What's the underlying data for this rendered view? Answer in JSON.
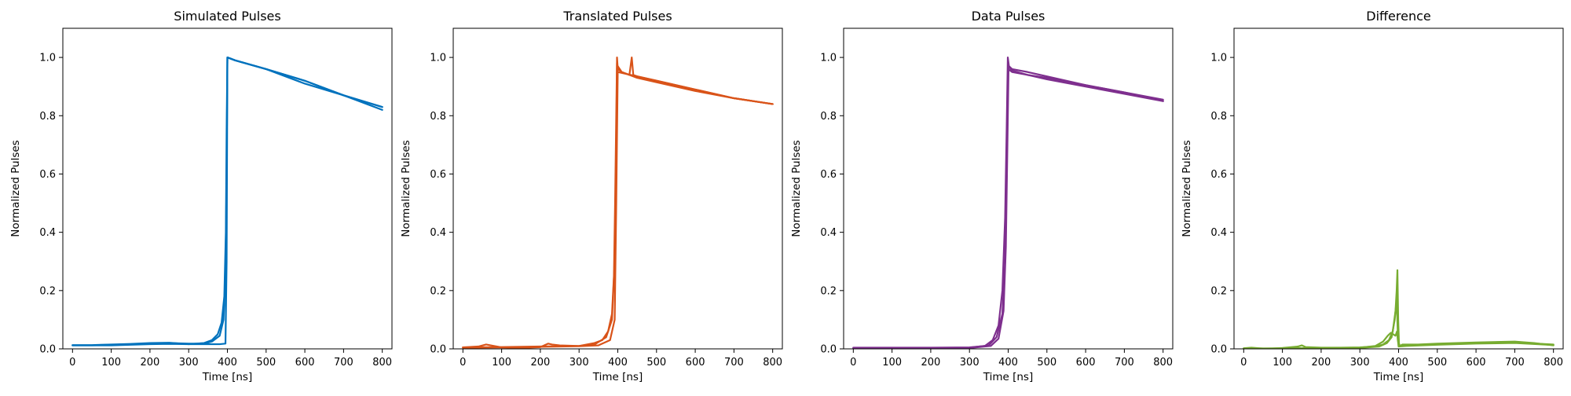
{
  "chart_data": [
    {
      "type": "line",
      "title": "Simulated Pulses",
      "xlabel": "Time [ns]",
      "ylabel": "Normalized Pulses",
      "xlim": [
        -25,
        825
      ],
      "ylim": [
        0,
        1.1
      ],
      "xticks": [
        0,
        100,
        200,
        300,
        400,
        500,
        600,
        700,
        800
      ],
      "yticks": [
        0.0,
        0.2,
        0.4,
        0.6,
        0.8,
        1.0
      ],
      "color": "#0072bd",
      "grid": false,
      "series": [
        {
          "x": [
            0,
            50,
            100,
            150,
            200,
            250,
            300,
            340,
            360,
            375,
            385,
            392,
            396,
            398,
            400,
            420,
            500,
            600,
            700,
            800
          ],
          "y": [
            0.013,
            0.013,
            0.015,
            0.017,
            0.02,
            0.021,
            0.016,
            0.02,
            0.03,
            0.05,
            0.09,
            0.18,
            0.4,
            0.75,
            1.0,
            0.99,
            0.96,
            0.91,
            0.87,
            0.82
          ]
        },
        {
          "x": [
            0,
            50,
            100,
            150,
            200,
            250,
            300,
            340,
            360,
            380,
            390,
            395,
            398,
            400,
            420,
            500,
            600,
            700,
            800
          ],
          "y": [
            0.012,
            0.012,
            0.014,
            0.016,
            0.018,
            0.02,
            0.018,
            0.018,
            0.025,
            0.045,
            0.1,
            0.25,
            0.6,
            1.0,
            0.99,
            0.96,
            0.92,
            0.87,
            0.83
          ]
        },
        {
          "x": [
            0,
            50,
            100,
            150,
            200,
            250,
            300,
            350,
            380,
            395,
            398,
            400,
            420,
            500,
            600,
            700,
            800
          ],
          "y": [
            0.012,
            0.012,
            0.012,
            0.014,
            0.016,
            0.017,
            0.016,
            0.016,
            0.016,
            0.018,
            0.3,
            1.0,
            0.99,
            0.96,
            0.92,
            0.87,
            0.83
          ]
        }
      ]
    },
    {
      "type": "line",
      "title": "Translated Pulses",
      "xlabel": "Time [ns]",
      "ylabel": "Normalized Pulses",
      "xlim": [
        -25,
        825
      ],
      "ylim": [
        0,
        1.1
      ],
      "xticks": [
        0,
        100,
        200,
        300,
        400,
        500,
        600,
        700,
        800
      ],
      "yticks": [
        0.0,
        0.2,
        0.4,
        0.6,
        0.8,
        1.0
      ],
      "color": "#d95319",
      "grid": false,
      "series": [
        {
          "x": [
            0,
            40,
            60,
            80,
            100,
            150,
            200,
            220,
            230,
            250,
            300,
            320,
            340,
            360,
            375,
            385,
            390,
            393,
            396,
            398,
            400,
            410,
            430,
            436,
            440,
            450,
            500,
            600,
            700,
            800
          ],
          "y": [
            0.005,
            0.008,
            0.015,
            0.01,
            0.005,
            0.003,
            0.006,
            0.018,
            0.015,
            0.012,
            0.01,
            0.015,
            0.02,
            0.03,
            0.06,
            0.12,
            0.25,
            0.5,
            0.8,
            1.0,
            0.96,
            0.95,
            0.94,
            1.0,
            0.94,
            0.935,
            0.92,
            0.89,
            0.86,
            0.84
          ]
        },
        {
          "x": [
            0,
            100,
            200,
            300,
            340,
            370,
            385,
            392,
            396,
            398,
            400,
            450,
            500,
            600,
            700,
            800
          ],
          "y": [
            0.005,
            0.006,
            0.008,
            0.01,
            0.015,
            0.04,
            0.1,
            0.3,
            0.7,
            0.98,
            0.95,
            0.935,
            0.92,
            0.89,
            0.86,
            0.84
          ]
        },
        {
          "x": [
            0,
            100,
            200,
            300,
            350,
            380,
            392,
            396,
            400,
            410,
            450,
            500,
            600,
            700,
            800
          ],
          "y": [
            0.004,
            0.005,
            0.007,
            0.009,
            0.012,
            0.03,
            0.1,
            0.5,
            0.97,
            0.95,
            0.93,
            0.915,
            0.885,
            0.86,
            0.84
          ]
        }
      ]
    },
    {
      "type": "line",
      "title": "Data Pulses",
      "xlabel": "Time [ns]",
      "ylabel": "Normalized Pulses",
      "xlim": [
        -25,
        825
      ],
      "ylim": [
        0,
        1.1
      ],
      "xticks": [
        0,
        100,
        200,
        300,
        400,
        500,
        600,
        700,
        800
      ],
      "yticks": [
        0.0,
        0.2,
        0.4,
        0.6,
        0.8,
        1.0
      ],
      "color": "#7e2f8e",
      "grid": false,
      "series": [
        {
          "x": [
            0,
            100,
            200,
            300,
            340,
            360,
            375,
            385,
            392,
            396,
            399,
            402,
            410,
            450,
            500,
            600,
            700,
            800
          ],
          "y": [
            0.004,
            0.004,
            0.004,
            0.005,
            0.01,
            0.03,
            0.08,
            0.2,
            0.45,
            0.75,
            1.0,
            0.97,
            0.96,
            0.95,
            0.935,
            0.905,
            0.88,
            0.85
          ]
        },
        {
          "x": [
            0,
            100,
            200,
            300,
            350,
            370,
            385,
            392,
            396,
            400,
            410,
            450,
            500,
            600,
            700,
            800
          ],
          "y": [
            0.003,
            0.003,
            0.003,
            0.004,
            0.012,
            0.04,
            0.12,
            0.3,
            0.6,
            0.96,
            0.95,
            0.94,
            0.925,
            0.9,
            0.875,
            0.85
          ]
        },
        {
          "x": [
            0,
            100,
            200,
            300,
            355,
            375,
            388,
            394,
            398,
            401,
            410,
            450,
            500,
            600,
            700,
            800
          ],
          "y": [
            0.002,
            0.002,
            0.002,
            0.003,
            0.01,
            0.035,
            0.13,
            0.35,
            0.7,
            0.97,
            0.955,
            0.94,
            0.93,
            0.905,
            0.88,
            0.855
          ]
        }
      ]
    },
    {
      "type": "line",
      "title": "Difference",
      "xlabel": "Time [ns]",
      "ylabel": "Normalized Pulses",
      "xlim": [
        -25,
        825
      ],
      "ylim": [
        0,
        1.1
      ],
      "xticks": [
        0,
        100,
        200,
        300,
        400,
        500,
        600,
        700,
        800
      ],
      "yticks": [
        0.0,
        0.2,
        0.4,
        0.6,
        0.8,
        1.0
      ],
      "color": "#77ac30",
      "grid": false,
      "series": [
        {
          "x": [
            0,
            20,
            40,
            60,
            100,
            140,
            150,
            160,
            200,
            250,
            300,
            340,
            360,
            375,
            385,
            392,
            395,
            397,
            399,
            401,
            403,
            410,
            450,
            500,
            600,
            700,
            750,
            800
          ],
          "y": [
            0.002,
            0.004,
            0.002,
            0.0,
            0.003,
            0.008,
            0.012,
            0.006,
            0.004,
            0.004,
            0.005,
            0.008,
            0.015,
            0.03,
            0.06,
            0.13,
            0.2,
            0.27,
            0.1,
            0.02,
            0.01,
            0.015,
            0.015,
            0.018,
            0.022,
            0.025,
            0.02,
            0.012
          ]
        },
        {
          "x": [
            0,
            100,
            200,
            300,
            340,
            360,
            372,
            380,
            386,
            392,
            396,
            398,
            400,
            420,
            500,
            600,
            700,
            800
          ],
          "y": [
            0.001,
            0.002,
            0.003,
            0.004,
            0.01,
            0.025,
            0.045,
            0.055,
            0.05,
            0.045,
            0.06,
            0.03,
            0.01,
            0.012,
            0.015,
            0.02,
            0.022,
            0.015
          ]
        },
        {
          "x": [
            0,
            100,
            200,
            300,
            350,
            370,
            382,
            390,
            395,
            398,
            400,
            420,
            500,
            600,
            700,
            800
          ],
          "y": [
            0.001,
            0.001,
            0.002,
            0.003,
            0.008,
            0.02,
            0.04,
            0.1,
            0.17,
            0.05,
            0.008,
            0.01,
            0.014,
            0.018,
            0.02,
            0.013
          ]
        }
      ]
    }
  ]
}
